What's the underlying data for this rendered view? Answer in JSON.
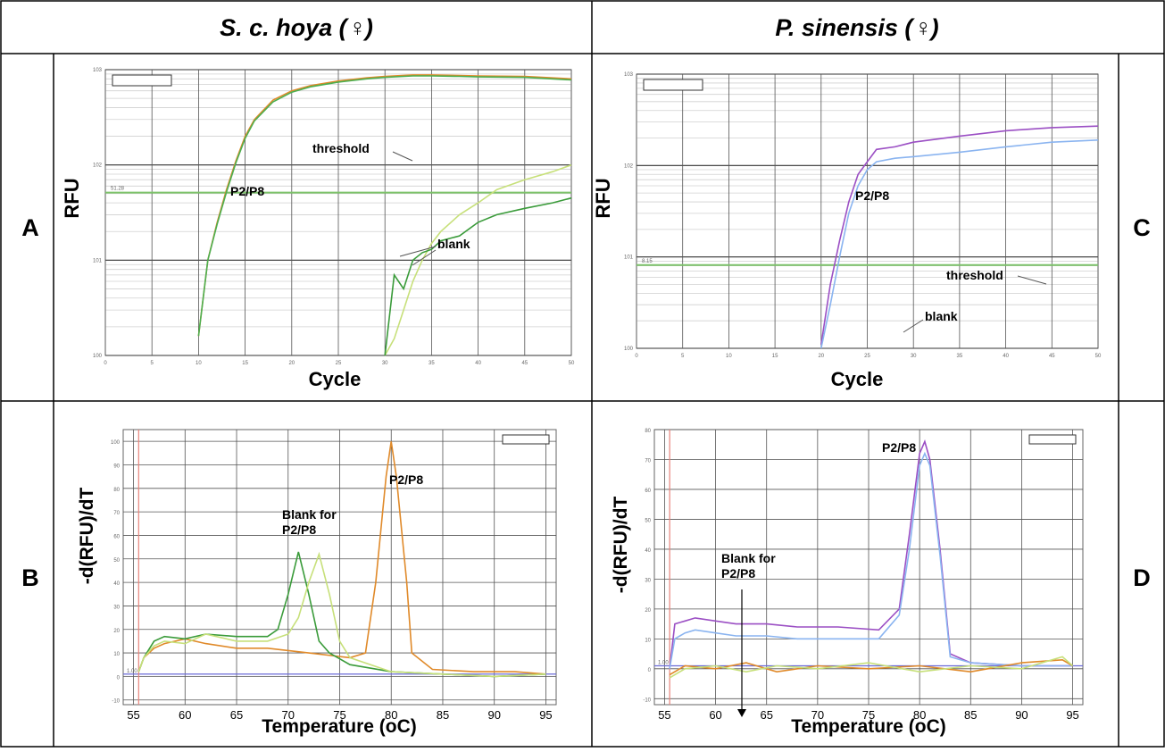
{
  "headers": {
    "left": "S. c. hoya (♀)",
    "right": "P. sinensis (♀)"
  },
  "row_labels": {
    "a": "A",
    "b": "B",
    "c": "C",
    "d": "D"
  },
  "chart_data": [
    {
      "id": "A",
      "type": "line",
      "xlabel": "Cycle",
      "ylabel": "RFU",
      "y_scale": "log",
      "xlim": [
        0,
        50
      ],
      "ylim": [
        1,
        1000
      ],
      "x_ticks": [
        0,
        5,
        10,
        15,
        20,
        25,
        30,
        35,
        40,
        45,
        50
      ],
      "y_ticks": [
        1,
        10,
        100,
        1000
      ],
      "threshold": {
        "value": 51.28,
        "label": "51.28"
      },
      "legend": "top-left",
      "grid": true,
      "annotations": {
        "threshold": "threshold",
        "product": "P2/P8",
        "blank": "blank"
      },
      "series": [
        {
          "color": "#e08a2a",
          "x": [
            10,
            11,
            12,
            13,
            14,
            15,
            16,
            18,
            20,
            22,
            25,
            28,
            30,
            33,
            35,
            38,
            40,
            45,
            50
          ],
          "y": [
            1.6,
            10,
            25,
            55,
            110,
            200,
            300,
            480,
            600,
            680,
            760,
            820,
            850,
            880,
            880,
            870,
            860,
            850,
            800
          ]
        },
        {
          "color": "#4caf50",
          "x": [
            10,
            11,
            12,
            13,
            14,
            15,
            16,
            18,
            20,
            22,
            25,
            28,
            30,
            33,
            35,
            38,
            40,
            45,
            50
          ],
          "y": [
            1.6,
            10,
            24,
            52,
            105,
            190,
            290,
            460,
            580,
            660,
            740,
            800,
            830,
            860,
            860,
            850,
            840,
            830,
            780
          ]
        },
        {
          "color": "#c7e07a",
          "x": [
            30,
            31,
            32,
            33,
            34,
            35,
            36,
            38,
            40,
            42,
            45,
            48,
            50
          ],
          "y": [
            1.0,
            1.5,
            3,
            6,
            10,
            15,
            20,
            30,
            40,
            55,
            70,
            85,
            100
          ]
        },
        {
          "color": "#3a9b3a",
          "x": [
            30,
            31,
            32,
            33,
            34,
            35,
            36,
            38,
            40,
            42,
            45,
            48,
            50
          ],
          "y": [
            1.0,
            7,
            5,
            10,
            12,
            13,
            16,
            18,
            25,
            30,
            35,
            40,
            45
          ]
        }
      ]
    },
    {
      "id": "C",
      "type": "line",
      "xlabel": "Cycle",
      "ylabel": "RFU",
      "y_scale": "log",
      "xlim": [
        0,
        50
      ],
      "ylim": [
        1,
        1000
      ],
      "x_ticks": [
        0,
        5,
        10,
        15,
        20,
        25,
        30,
        35,
        40,
        45,
        50
      ],
      "y_ticks": [
        1,
        10,
        100,
        1000
      ],
      "threshold": {
        "value": 8.15,
        "label": "8.15"
      },
      "legend": "top-left",
      "grid": true,
      "annotations": {
        "threshold": "threshold",
        "product": "P2/P8",
        "blank": "blank"
      },
      "series": [
        {
          "color": "#9b4fc4",
          "x": [
            20,
            21,
            22,
            23,
            24,
            25,
            26,
            28,
            30,
            35,
            40,
            45,
            50
          ],
          "y": [
            1.1,
            5,
            15,
            40,
            80,
            110,
            150,
            160,
            180,
            210,
            240,
            260,
            270
          ]
        },
        {
          "color": "#8ab4f0",
          "x": [
            20,
            21,
            22,
            23,
            24,
            25,
            26,
            28,
            30,
            35,
            40,
            45,
            50
          ],
          "y": [
            1.0,
            3,
            10,
            30,
            60,
            90,
            110,
            120,
            125,
            140,
            160,
            180,
            190
          ]
        }
      ]
    },
    {
      "id": "B",
      "type": "line",
      "xlabel": "Temperature (oC)",
      "ylabel": "-d(RFU)/dT",
      "xlim": [
        54,
        96
      ],
      "ylim": [
        -12,
        105
      ],
      "x_ticks": [
        55,
        60,
        65,
        70,
        75,
        80,
        85,
        90,
        95
      ],
      "y_ticks": [
        -10,
        0,
        10,
        20,
        30,
        40,
        50,
        60,
        70,
        80,
        90,
        100
      ],
      "baseline": {
        "value": 1,
        "label": "1.00"
      },
      "legend": "top-right",
      "grid": true,
      "annotations": {
        "product": "P2/P8",
        "blank": "Blank for\nP2/P8"
      },
      "series": [
        {
          "color": "#e08a2a",
          "x": [
            55.5,
            56,
            57,
            58,
            60,
            62,
            65,
            68,
            72,
            76,
            77.5,
            78.5,
            79.5,
            80,
            80.5,
            81.5,
            82,
            84,
            88,
            92,
            95
          ],
          "y": [
            2,
            8,
            12,
            14,
            16,
            14,
            12,
            12,
            10,
            8,
            10,
            40,
            85,
            100,
            85,
            40,
            10,
            3,
            2,
            2,
            1
          ]
        },
        {
          "color": "#3a9b3a",
          "x": [
            55.5,
            56,
            57,
            58,
            60,
            62,
            65,
            68,
            69,
            70,
            71,
            72,
            73,
            74,
            76,
            80,
            85,
            90,
            95
          ],
          "y": [
            2,
            8,
            15,
            17,
            16,
            18,
            17,
            17,
            20,
            35,
            53,
            35,
            15,
            10,
            5,
            2,
            1,
            0,
            1
          ]
        },
        {
          "color": "#c7e07a",
          "x": [
            55.5,
            56,
            57,
            58,
            60,
            62,
            65,
            68,
            70,
            71,
            72,
            73,
            74,
            75,
            76,
            80,
            85,
            90,
            95
          ],
          "y": [
            2,
            8,
            13,
            15,
            14,
            18,
            15,
            15,
            18,
            25,
            40,
            52,
            35,
            15,
            8,
            2,
            1,
            0,
            1
          ]
        }
      ]
    },
    {
      "id": "D",
      "type": "line",
      "xlabel": "Temperature (oC)",
      "ylabel": "-d(RFU)/dT",
      "xlim": [
        54,
        96
      ],
      "ylim": [
        -12,
        80
      ],
      "x_ticks": [
        55,
        60,
        65,
        70,
        75,
        80,
        85,
        90,
        95
      ],
      "y_ticks": [
        -10,
        0,
        10,
        20,
        30,
        40,
        50,
        60,
        70,
        80
      ],
      "baseline": {
        "value": 1,
        "label": "1.00"
      },
      "legend": "top-right",
      "grid": true,
      "annotations": {
        "product": "P2/P8",
        "blank": "Blank for\nP2/P8"
      },
      "series": [
        {
          "color": "#9b4fc4",
          "x": [
            55.5,
            56,
            57,
            58,
            60,
            62,
            65,
            68,
            72,
            76,
            78,
            79,
            80,
            80.5,
            81,
            82,
            83,
            85,
            90,
            95
          ],
          "y": [
            0,
            15,
            16,
            17,
            16,
            15,
            15,
            14,
            14,
            13,
            20,
            45,
            72,
            76,
            70,
            40,
            5,
            2,
            1,
            1
          ]
        },
        {
          "color": "#8ab4f0",
          "x": [
            55.5,
            56,
            57,
            58,
            60,
            62,
            65,
            68,
            72,
            76,
            78,
            79,
            80,
            80.5,
            81,
            82,
            83,
            85,
            90,
            95
          ],
          "y": [
            0,
            10,
            12,
            13,
            12,
            11,
            11,
            10,
            10,
            10,
            18,
            40,
            68,
            72,
            68,
            38,
            4,
            2,
            1,
            1
          ]
        },
        {
          "color": "#e08a2a",
          "x": [
            55.5,
            57,
            60,
            63,
            66,
            70,
            75,
            80,
            85,
            90,
            94,
            95
          ],
          "y": [
            -2,
            1,
            0,
            2,
            -1,
            1,
            0,
            1,
            -1,
            2,
            3,
            1
          ]
        },
        {
          "color": "#c7e07a",
          "x": [
            55.5,
            57,
            60,
            63,
            66,
            70,
            75,
            80,
            85,
            90,
            94,
            95
          ],
          "y": [
            -3,
            0,
            1,
            -1,
            1,
            0,
            2,
            -1,
            1,
            0,
            4,
            1
          ]
        }
      ]
    }
  ]
}
